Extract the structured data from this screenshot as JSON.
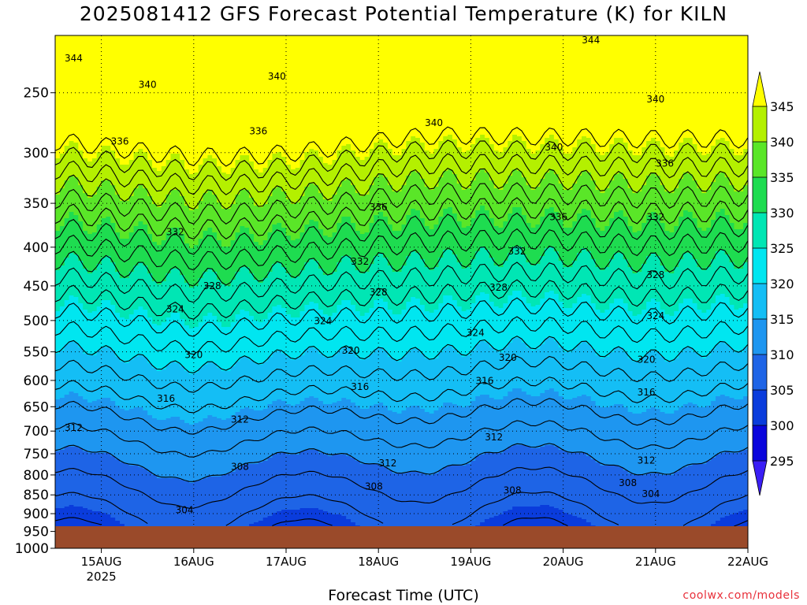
{
  "chart_data": {
    "type": "heatmap",
    "title": "2025081412 GFS Forecast Potential Temperature (K) for KILN",
    "xlabel": "Forecast Time (UTC)",
    "ylabel": "",
    "credit": "coolwx.com/models",
    "x_ticks": [
      {
        "day": 15,
        "label": "15AUG",
        "sub": "2025"
      },
      {
        "day": 16,
        "label": "16AUG",
        "sub": ""
      },
      {
        "day": 17,
        "label": "17AUG",
        "sub": ""
      },
      {
        "day": 18,
        "label": "18AUG",
        "sub": ""
      },
      {
        "day": 19,
        "label": "19AUG",
        "sub": ""
      },
      {
        "day": 20,
        "label": "20AUG",
        "sub": ""
      },
      {
        "day": 21,
        "label": "21AUG",
        "sub": ""
      },
      {
        "day": 22,
        "label": "22AUG",
        "sub": ""
      }
    ],
    "xlim_days": [
      14.5,
      22.0
    ],
    "y_ticks_hPa": [
      "250",
      "300",
      "350",
      "400",
      "450",
      "500",
      "550",
      "600",
      "650",
      "700",
      "750",
      "800",
      "850",
      "900",
      "950",
      "1000"
    ],
    "ylim_hPa": [
      210,
      1000
    ],
    "y_scale": "log",
    "grid": true,
    "colorbar": {
      "labels": [
        "345",
        "340",
        "335",
        "330",
        "325",
        "320",
        "315",
        "310",
        "305",
        "300",
        "295"
      ],
      "bands": [
        {
          "min": 290,
          "max": 295,
          "color": "#3a1ef5"
        },
        {
          "min": 295,
          "max": 300,
          "color": "#0a05dc"
        },
        {
          "min": 300,
          "max": 305,
          "color": "#0a3cdc"
        },
        {
          "min": 305,
          "max": 310,
          "color": "#1e64e6"
        },
        {
          "min": 310,
          "max": 315,
          "color": "#1e96f0"
        },
        {
          "min": 315,
          "max": 320,
          "color": "#14bef5"
        },
        {
          "min": 320,
          "max": 325,
          "color": "#00e6f0"
        },
        {
          "min": 325,
          "max": 330,
          "color": "#00e6b4"
        },
        {
          "min": 330,
          "max": 335,
          "color": "#1edc50"
        },
        {
          "min": 335,
          "max": 340,
          "color": "#5ae628"
        },
        {
          "min": 340,
          "max": 345,
          "color": "#b4f000"
        },
        {
          "min": 345,
          "max": 350,
          "color": "#ffff00"
        }
      ]
    },
    "ground_color": "#9a4a2a",
    "contour_labels": [
      {
        "text": "344",
        "day": 14.7,
        "p": 225
      },
      {
        "text": "344",
        "day": 20.3,
        "p": 213
      },
      {
        "text": "340",
        "day": 15.5,
        "p": 244
      },
      {
        "text": "340",
        "day": 16.9,
        "p": 238
      },
      {
        "text": "340",
        "day": 18.6,
        "p": 274
      },
      {
        "text": "340",
        "day": 19.9,
        "p": 295
      },
      {
        "text": "340",
        "day": 21.0,
        "p": 255
      },
      {
        "text": "336",
        "day": 15.2,
        "p": 290
      },
      {
        "text": "336",
        "day": 16.7,
        "p": 281
      },
      {
        "text": "336",
        "day": 18.0,
        "p": 354
      },
      {
        "text": "336",
        "day": 19.95,
        "p": 365
      },
      {
        "text": "336",
        "day": 21.1,
        "p": 310
      },
      {
        "text": "332",
        "day": 15.8,
        "p": 382
      },
      {
        "text": "332",
        "day": 17.8,
        "p": 418
      },
      {
        "text": "332",
        "day": 19.5,
        "p": 405
      },
      {
        "text": "332",
        "day": 21.0,
        "p": 365
      },
      {
        "text": "328",
        "day": 16.2,
        "p": 450
      },
      {
        "text": "328",
        "day": 18.0,
        "p": 459
      },
      {
        "text": "328",
        "day": 19.3,
        "p": 452
      },
      {
        "text": "328",
        "day": 21.0,
        "p": 435
      },
      {
        "text": "324",
        "day": 15.8,
        "p": 483
      },
      {
        "text": "324",
        "day": 17.4,
        "p": 501
      },
      {
        "text": "324",
        "day": 19.05,
        "p": 519
      },
      {
        "text": "324",
        "day": 21.0,
        "p": 493
      },
      {
        "text": "320",
        "day": 16.0,
        "p": 555
      },
      {
        "text": "320",
        "day": 17.7,
        "p": 548
      },
      {
        "text": "320",
        "day": 19.4,
        "p": 560
      },
      {
        "text": "320",
        "day": 20.9,
        "p": 563
      },
      {
        "text": "316",
        "day": 15.7,
        "p": 634
      },
      {
        "text": "316",
        "day": 17.8,
        "p": 612
      },
      {
        "text": "316",
        "day": 19.15,
        "p": 601
      },
      {
        "text": "316",
        "day": 20.9,
        "p": 622
      },
      {
        "text": "312",
        "day": 14.7,
        "p": 693
      },
      {
        "text": "312",
        "day": 16.5,
        "p": 676
      },
      {
        "text": "312",
        "day": 18.1,
        "p": 772
      },
      {
        "text": "312",
        "day": 19.25,
        "p": 713
      },
      {
        "text": "312",
        "day": 20.9,
        "p": 765
      },
      {
        "text": "308",
        "day": 16.5,
        "p": 780
      },
      {
        "text": "308",
        "day": 17.95,
        "p": 828
      },
      {
        "text": "308",
        "day": 19.45,
        "p": 838
      },
      {
        "text": "308",
        "day": 20.7,
        "p": 820
      },
      {
        "text": "304",
        "day": 15.9,
        "p": 890
      },
      {
        "text": "304",
        "day": 20.95,
        "p": 848
      }
    ]
  }
}
